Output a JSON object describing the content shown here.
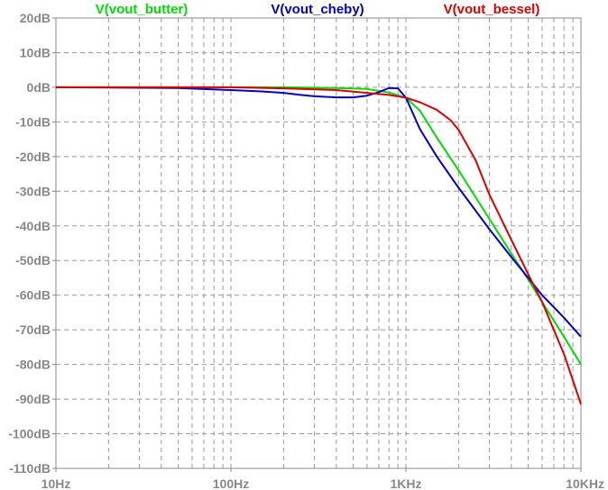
{
  "chart_data": {
    "type": "line",
    "x_scale": "log",
    "xlim": [
      10,
      10000
    ],
    "ylim": [
      -110,
      20
    ],
    "grid": true,
    "legend_position": "top",
    "x_ticks": [
      {
        "value": 10,
        "label": "10Hz"
      },
      {
        "value": 100,
        "label": "100Hz"
      },
      {
        "value": 1000,
        "label": "1KHz"
      },
      {
        "value": 10000,
        "label": "10KHz"
      }
    ],
    "y_ticks": [
      {
        "value": 20,
        "label": "20dB"
      },
      {
        "value": 10,
        "label": "10dB"
      },
      {
        "value": 0,
        "label": "0dB"
      },
      {
        "value": -10,
        "label": "-10dB"
      },
      {
        "value": -20,
        "label": "-20dB"
      },
      {
        "value": -30,
        "label": "-30dB"
      },
      {
        "value": -40,
        "label": "-40dB"
      },
      {
        "value": -50,
        "label": "-50dB"
      },
      {
        "value": -60,
        "label": "-60dB"
      },
      {
        "value": -70,
        "label": "-70dB"
      },
      {
        "value": -80,
        "label": "-80dB"
      },
      {
        "value": -90,
        "label": "-90dB"
      },
      {
        "value": -100,
        "label": "-100dB"
      },
      {
        "value": -110,
        "label": "-110dB"
      }
    ],
    "series": [
      {
        "name": "V(vout_butter)",
        "color": "#00dd00",
        "x": [
          10,
          50,
          100,
          200,
          400,
          600,
          800,
          900,
          1000,
          1200,
          1500,
          2000,
          3000,
          4000,
          5000,
          6000,
          8000,
          10000
        ],
        "y": [
          0,
          0,
          0,
          0,
          -0.2,
          -0.5,
          -1.5,
          -2.3,
          -3.0,
          -6.7,
          -14.5,
          -24,
          -38,
          -48,
          -55.5,
          -62,
          -72,
          -80
        ]
      },
      {
        "name": "V(vout_cheby)",
        "color": "#0000cc",
        "x": [
          10,
          50,
          100,
          150,
          200,
          250,
          300,
          400,
          500,
          600,
          700,
          800,
          900,
          1000,
          1200,
          1500,
          2000,
          3000,
          4000,
          5000,
          6000,
          8000,
          10000
        ],
        "y": [
          0,
          -0.2,
          -0.8,
          -1.2,
          -1.6,
          -2.2,
          -2.6,
          -2.9,
          -2.9,
          -2.4,
          -1.4,
          -0.2,
          -0.3,
          -3.0,
          -12,
          -20,
          -29,
          -41,
          -49,
          -55,
          -60,
          -66.5,
          -72
        ]
      },
      {
        "name": "V(vout_bessel)",
        "color": "#dd0000",
        "x": [
          10,
          50,
          100,
          200,
          400,
          600,
          800,
          1000,
          1200,
          1500,
          1800,
          2000,
          2500,
          3000,
          4000,
          5000,
          6000,
          8000,
          10000
        ],
        "y": [
          0,
          0,
          0,
          -0.3,
          -0.8,
          -1.6,
          -2.2,
          -3.0,
          -4.3,
          -6.5,
          -9.5,
          -12.3,
          -21,
          -31,
          -44,
          -54,
          -62,
          -77,
          -91.5
        ]
      }
    ]
  }
}
